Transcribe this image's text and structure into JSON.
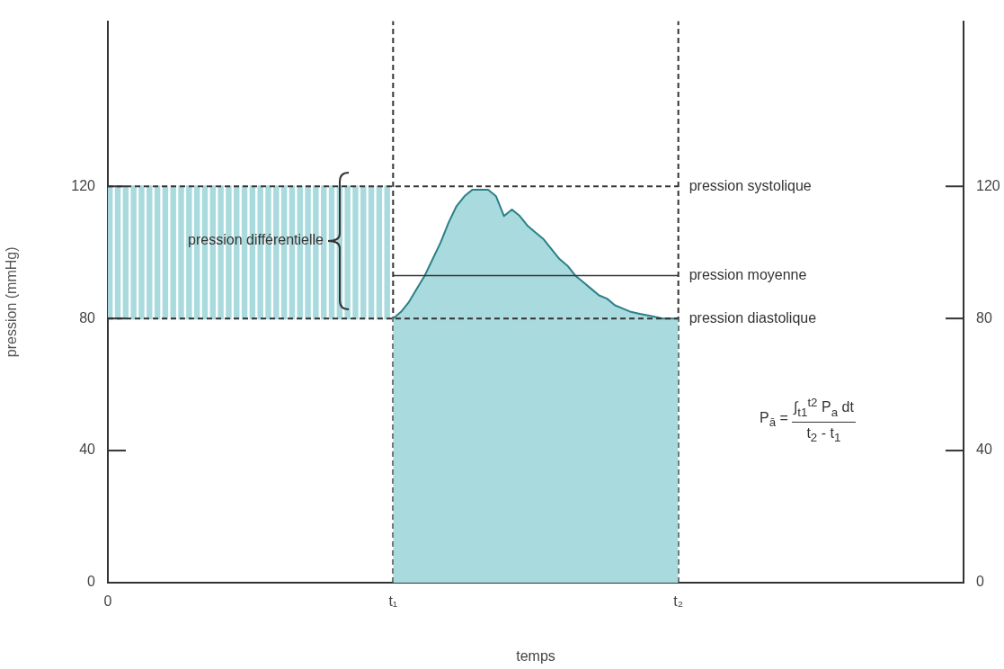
{
  "chart_data": {
    "type": "area",
    "xlabel": "temps",
    "ylabel": "pression (mmHg)",
    "categories": [
      "0",
      null,
      null,
      null,
      null,
      null,
      null,
      null,
      null,
      null,
      null,
      null,
      null,
      null,
      null,
      null,
      null,
      null,
      null,
      null,
      null,
      null,
      null,
      null,
      null,
      null,
      null,
      null,
      null,
      null,
      null,
      null,
      null,
      null,
      null,
      null,
      "t₁",
      null,
      null,
      null,
      null,
      null,
      null,
      null,
      null,
      null,
      null,
      null,
      null,
      null,
      null,
      null,
      null,
      null,
      null,
      null,
      null,
      null,
      null,
      null,
      null,
      null,
      null,
      null,
      null,
      null,
      null,
      null,
      null,
      null,
      null,
      null,
      "t₂",
      null,
      null,
      null,
      null,
      null,
      null,
      null,
      null,
      null,
      null,
      null,
      null,
      null,
      null,
      null,
      null,
      null,
      null,
      null,
      null,
      null,
      null,
      null,
      null,
      null,
      null,
      null,
      null,
      null,
      null,
      null,
      null,
      null,
      null,
      null,
      null
    ],
    "ylim": [
      0,
      170
    ],
    "yticks": [
      0,
      40,
      80,
      120
    ],
    "y2lim": [
      0,
      170
    ],
    "y2ticks": [
      0,
      40,
      80,
      120
    ],
    "series": [
      {
        "type": "bar",
        "color": "#a9dadd",
        "base": [
          80,
          80,
          80,
          80,
          80,
          80,
          80,
          80,
          80,
          80,
          80,
          80,
          80,
          80,
          80,
          80,
          80,
          80,
          80,
          80,
          80,
          80,
          80,
          80,
          80,
          80,
          80,
          80,
          80,
          80,
          80,
          80,
          80,
          80,
          80,
          80,
          null,
          null,
          null,
          null,
          null,
          null,
          null,
          null,
          null,
          null,
          null,
          null,
          null,
          null,
          null,
          null,
          null,
          null,
          null,
          null,
          null,
          null,
          null,
          null,
          null,
          null,
          null,
          null,
          null,
          null,
          null,
          null,
          null,
          null,
          null,
          null,
          null,
          null,
          null,
          null,
          null,
          null,
          null,
          null,
          null,
          null,
          null,
          null,
          null,
          null,
          null,
          null,
          null,
          null,
          null,
          null,
          null,
          null,
          null,
          null,
          null,
          null,
          null,
          null,
          null,
          null,
          null,
          null,
          null,
          null,
          null,
          null,
          null
        ],
        "values": [
          40,
          40,
          40,
          40,
          40,
          40,
          40,
          40,
          40,
          40,
          40,
          40,
          40,
          40,
          40,
          40,
          40,
          40,
          40,
          40,
          40,
          40,
          40,
          40,
          40,
          40,
          40,
          40,
          40,
          40,
          40,
          40,
          40,
          40,
          40,
          40,
          null,
          null,
          null,
          null,
          null,
          null,
          null,
          null,
          null,
          null,
          null,
          null,
          null,
          null,
          null,
          null,
          null,
          null,
          null,
          null,
          null,
          null,
          null,
          null,
          null,
          null,
          null,
          null,
          null,
          null,
          null,
          null,
          null,
          null,
          null,
          null,
          null,
          null,
          null,
          null,
          null,
          null,
          null,
          null,
          null,
          null,
          null,
          null,
          null,
          null,
          null,
          null,
          null,
          null,
          null,
          null,
          null,
          null,
          null,
          null,
          null,
          null,
          null,
          null,
          null,
          null,
          null,
          null,
          null,
          null,
          null,
          null,
          null
        ]
      },
      {
        "color": "#a9dadd",
        "values": [
          null,
          null,
          null,
          null,
          null,
          null,
          null,
          null,
          null,
          null,
          null,
          null,
          null,
          null,
          null,
          null,
          null,
          null,
          null,
          null,
          null,
          null,
          null,
          null,
          null,
          null,
          null,
          null,
          null,
          null,
          null,
          null,
          null,
          null,
          null,
          null,
          80,
          82,
          85,
          89,
          93,
          98,
          103,
          109,
          114,
          117,
          119,
          119,
          119,
          117,
          111,
          113,
          111,
          108,
          106,
          104,
          101,
          98,
          96,
          93,
          91,
          89,
          87,
          86,
          84,
          83,
          82,
          81.5,
          81,
          80.5,
          80,
          80,
          80,
          null,
          null,
          null,
          null,
          null,
          null,
          null,
          null,
          null,
          null,
          null,
          null,
          null,
          null,
          null,
          null,
          null,
          null,
          null,
          null,
          null,
          null,
          null,
          null,
          null,
          null,
          null,
          null,
          null,
          null,
          null,
          null,
          null,
          null,
          null,
          null
        ]
      },
      {
        "type": "line",
        "name": "pression systolique",
        "color": "#333333",
        "line_style": "dashed",
        "values": [
          120,
          120,
          120,
          120,
          120,
          120,
          120,
          120,
          120,
          120,
          120,
          120,
          120,
          120,
          120,
          120,
          120,
          120,
          120,
          120,
          120,
          120,
          120,
          120,
          120,
          120,
          120,
          120,
          120,
          120,
          120,
          120,
          120,
          120,
          120,
          120,
          120,
          120,
          120,
          120,
          120,
          120,
          120,
          120,
          120,
          120,
          120,
          120,
          120,
          120,
          120,
          120,
          120,
          120,
          120,
          120,
          120,
          120,
          120,
          120,
          120,
          120,
          120,
          120,
          120,
          120,
          120,
          120,
          120,
          120,
          120,
          120,
          120,
          null,
          null,
          null,
          null,
          null,
          null,
          null,
          null,
          null,
          null,
          null,
          null,
          null,
          null,
          null,
          null,
          null,
          null,
          null,
          null,
          null,
          null,
          null,
          null,
          null,
          null,
          null,
          null,
          null,
          null,
          null,
          null,
          null,
          null,
          null,
          null
        ]
      },
      {
        "type": "line",
        "name": "pression moyenne",
        "color": "#333333",
        "line_style": "solid",
        "values": [
          null,
          null,
          null,
          null,
          null,
          null,
          null,
          null,
          null,
          null,
          null,
          null,
          null,
          null,
          null,
          null,
          null,
          null,
          null,
          null,
          null,
          null,
          null,
          null,
          null,
          null,
          null,
          null,
          null,
          null,
          null,
          null,
          null,
          null,
          null,
          null,
          93,
          93,
          93,
          93,
          93,
          93,
          93,
          93,
          93,
          93,
          93,
          93,
          93,
          93,
          93,
          93,
          93,
          93,
          93,
          93,
          93,
          93,
          93,
          93,
          93,
          93,
          93,
          93,
          93,
          93,
          93,
          93,
          93,
          93,
          93,
          93,
          93,
          null,
          null,
          null,
          null,
          null,
          null,
          null,
          null,
          null,
          null,
          null,
          null,
          null,
          null,
          null,
          null,
          null,
          null,
          null,
          null,
          null,
          null,
          null,
          null,
          null,
          null,
          null,
          null,
          null,
          null,
          null,
          null,
          null,
          null,
          null,
          null
        ]
      },
      {
        "type": "line",
        "name": "pression diastolique",
        "color": "#333333",
        "line_style": "dashed",
        "values": [
          80,
          80,
          80,
          80,
          80,
          80,
          80,
          80,
          80,
          80,
          80,
          80,
          80,
          80,
          80,
          80,
          80,
          80,
          80,
          80,
          80,
          80,
          80,
          80,
          80,
          80,
          80,
          80,
          80,
          80,
          80,
          80,
          80,
          80,
          80,
          80,
          80,
          80,
          80,
          80,
          80,
          80,
          80,
          80,
          80,
          80,
          80,
          80,
          80,
          80,
          80,
          80,
          80,
          80,
          80,
          80,
          80,
          80,
          80,
          80,
          80,
          80,
          80,
          80,
          80,
          80,
          80,
          80,
          80,
          80,
          80,
          80,
          80,
          null,
          null,
          null,
          null,
          null,
          null,
          null,
          null,
          null,
          null,
          null,
          null,
          null,
          null,
          null,
          null,
          null,
          null,
          null,
          null,
          null,
          null,
          null,
          null,
          null,
          null,
          null,
          null,
          null,
          null,
          null,
          null,
          null,
          null,
          null,
          null
        ]
      }
    ],
    "ref_lines": [
      {
        "axis": "x",
        "value": "t₁",
        "color": "#333333",
        "line_style": "dashed"
      },
      {
        "axis": "x",
        "value": "t₂",
        "color": "#333333",
        "line_style": "dashed"
      }
    ],
    "annotations": [
      "pression différentielle",
      "P$_{ā}$ =",
      "∫$_{t1}$$^{t2}$ P$_{a}$ dt",
      "t$_{2}$ - t$_{1}$"
    ]
  }
}
